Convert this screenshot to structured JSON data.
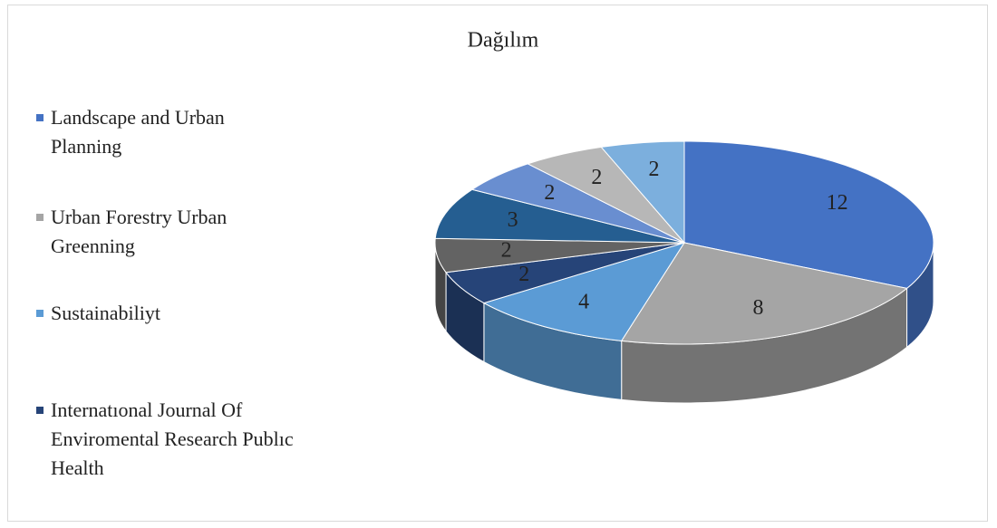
{
  "chart_data": {
    "type": "pie3d",
    "title": "Dağılım",
    "categories": [
      "Landscape and Urban Planning",
      "Urban Forestry Urban Greenning",
      "Sustainabiliyt",
      "Internatıonal Journal Of Enviromental Research Publıc Health",
      null,
      null,
      null,
      null,
      null
    ],
    "values": [
      12,
      8,
      4,
      2,
      2,
      3,
      2,
      2,
      2
    ],
    "colors": [
      "#4472c4",
      "#a5a5a5",
      "#5b9bd5",
      "#264478",
      "#636363",
      "#255e91",
      "#698ed0",
      "#b7b7b7",
      "#7cafdd"
    ],
    "legend_position": "left"
  }
}
